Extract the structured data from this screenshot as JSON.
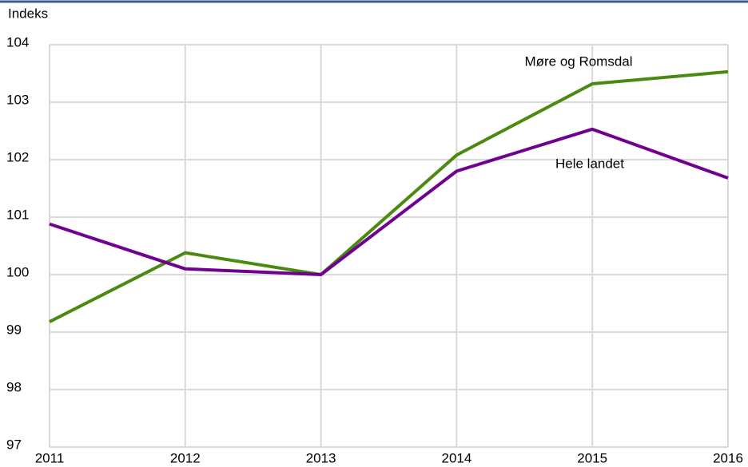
{
  "chart_data": {
    "type": "line",
    "y_axis_label": "Indeks",
    "x": [
      2011,
      2012,
      2013,
      2014,
      2015,
      2016
    ],
    "xlim": [
      2011,
      2016
    ],
    "xticks": [
      2011,
      2012,
      2013,
      2014,
      2015,
      2016
    ],
    "ylim": [
      97,
      104
    ],
    "yticks": [
      97,
      98,
      99,
      100,
      101,
      102,
      103,
      104
    ],
    "grid": true,
    "series": [
      {
        "name": "Møre og Romsdal",
        "color": "#4a8a10",
        "values": [
          99.18,
          100.38,
          100.0,
          102.08,
          103.32,
          103.53
        ]
      },
      {
        "name": "Hele landet",
        "color": "#700090",
        "values": [
          100.88,
          100.1,
          100.0,
          101.8,
          102.53,
          101.68
        ]
      }
    ]
  }
}
